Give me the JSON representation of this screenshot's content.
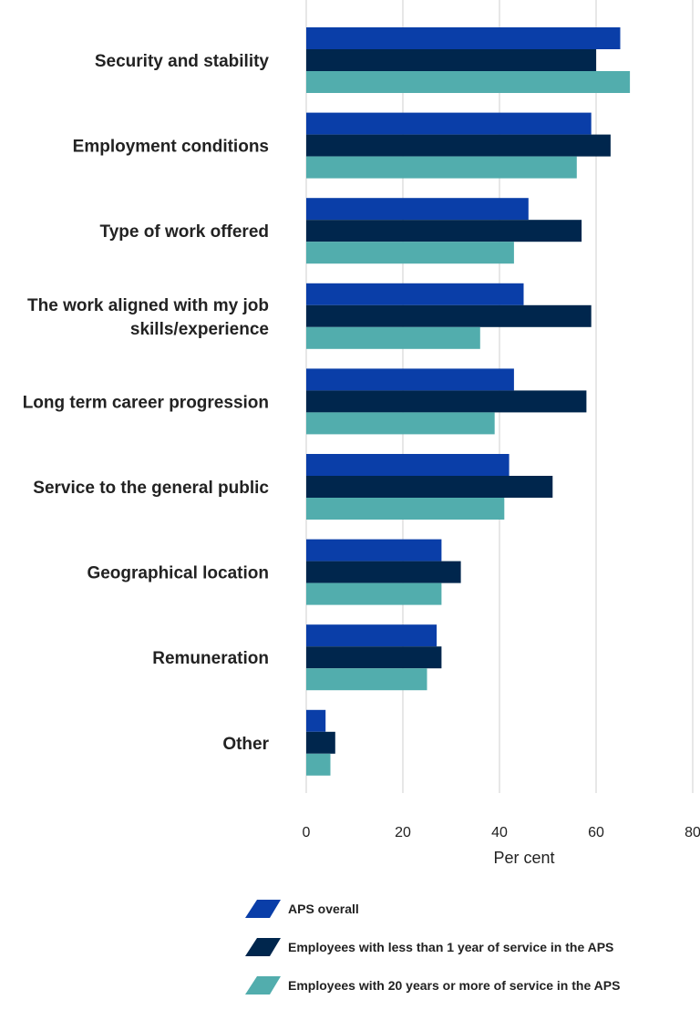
{
  "chart_data": {
    "type": "bar",
    "orientation": "horizontal",
    "categories": [
      "Security and stability",
      "Employment conditions",
      "Type of work offered",
      "The work aligned with my job skills/experience",
      "Long term career progression",
      "Service to the general public",
      "Geographical location",
      "Remuneration",
      "Other"
    ],
    "category_lines": [
      [
        "Security and stability"
      ],
      [
        "Employment conditions"
      ],
      [
        "Type of work offered"
      ],
      [
        "The work aligned with my job",
        "skills/experience"
      ],
      [
        "Long term career progression"
      ],
      [
        "Service to the general public"
      ],
      [
        "Geographical location"
      ],
      [
        "Remuneration"
      ],
      [
        "Other"
      ]
    ],
    "series": [
      {
        "name": "APS overall",
        "color": "#0a3ea8",
        "values": [
          65,
          59,
          46,
          45,
          43,
          42,
          28,
          27,
          4
        ]
      },
      {
        "name": "Employees with less than 1 year of service in the APS",
        "color": "#00264d",
        "values": [
          60,
          63,
          57,
          59,
          58,
          51,
          32,
          28,
          6
        ]
      },
      {
        "name": "Employees with 20 years or more of service in the APS",
        "color": "#52adad",
        "values": [
          67,
          56,
          43,
          36,
          39,
          41,
          28,
          25,
          5
        ]
      }
    ],
    "xlim": [
      0,
      80
    ],
    "xticks": [
      "0",
      "20",
      "40",
      "60",
      "80"
    ],
    "xlabel": "Per cent",
    "ylabel": "",
    "title": "",
    "grid": "vertical",
    "legend_position": "bottom"
  }
}
